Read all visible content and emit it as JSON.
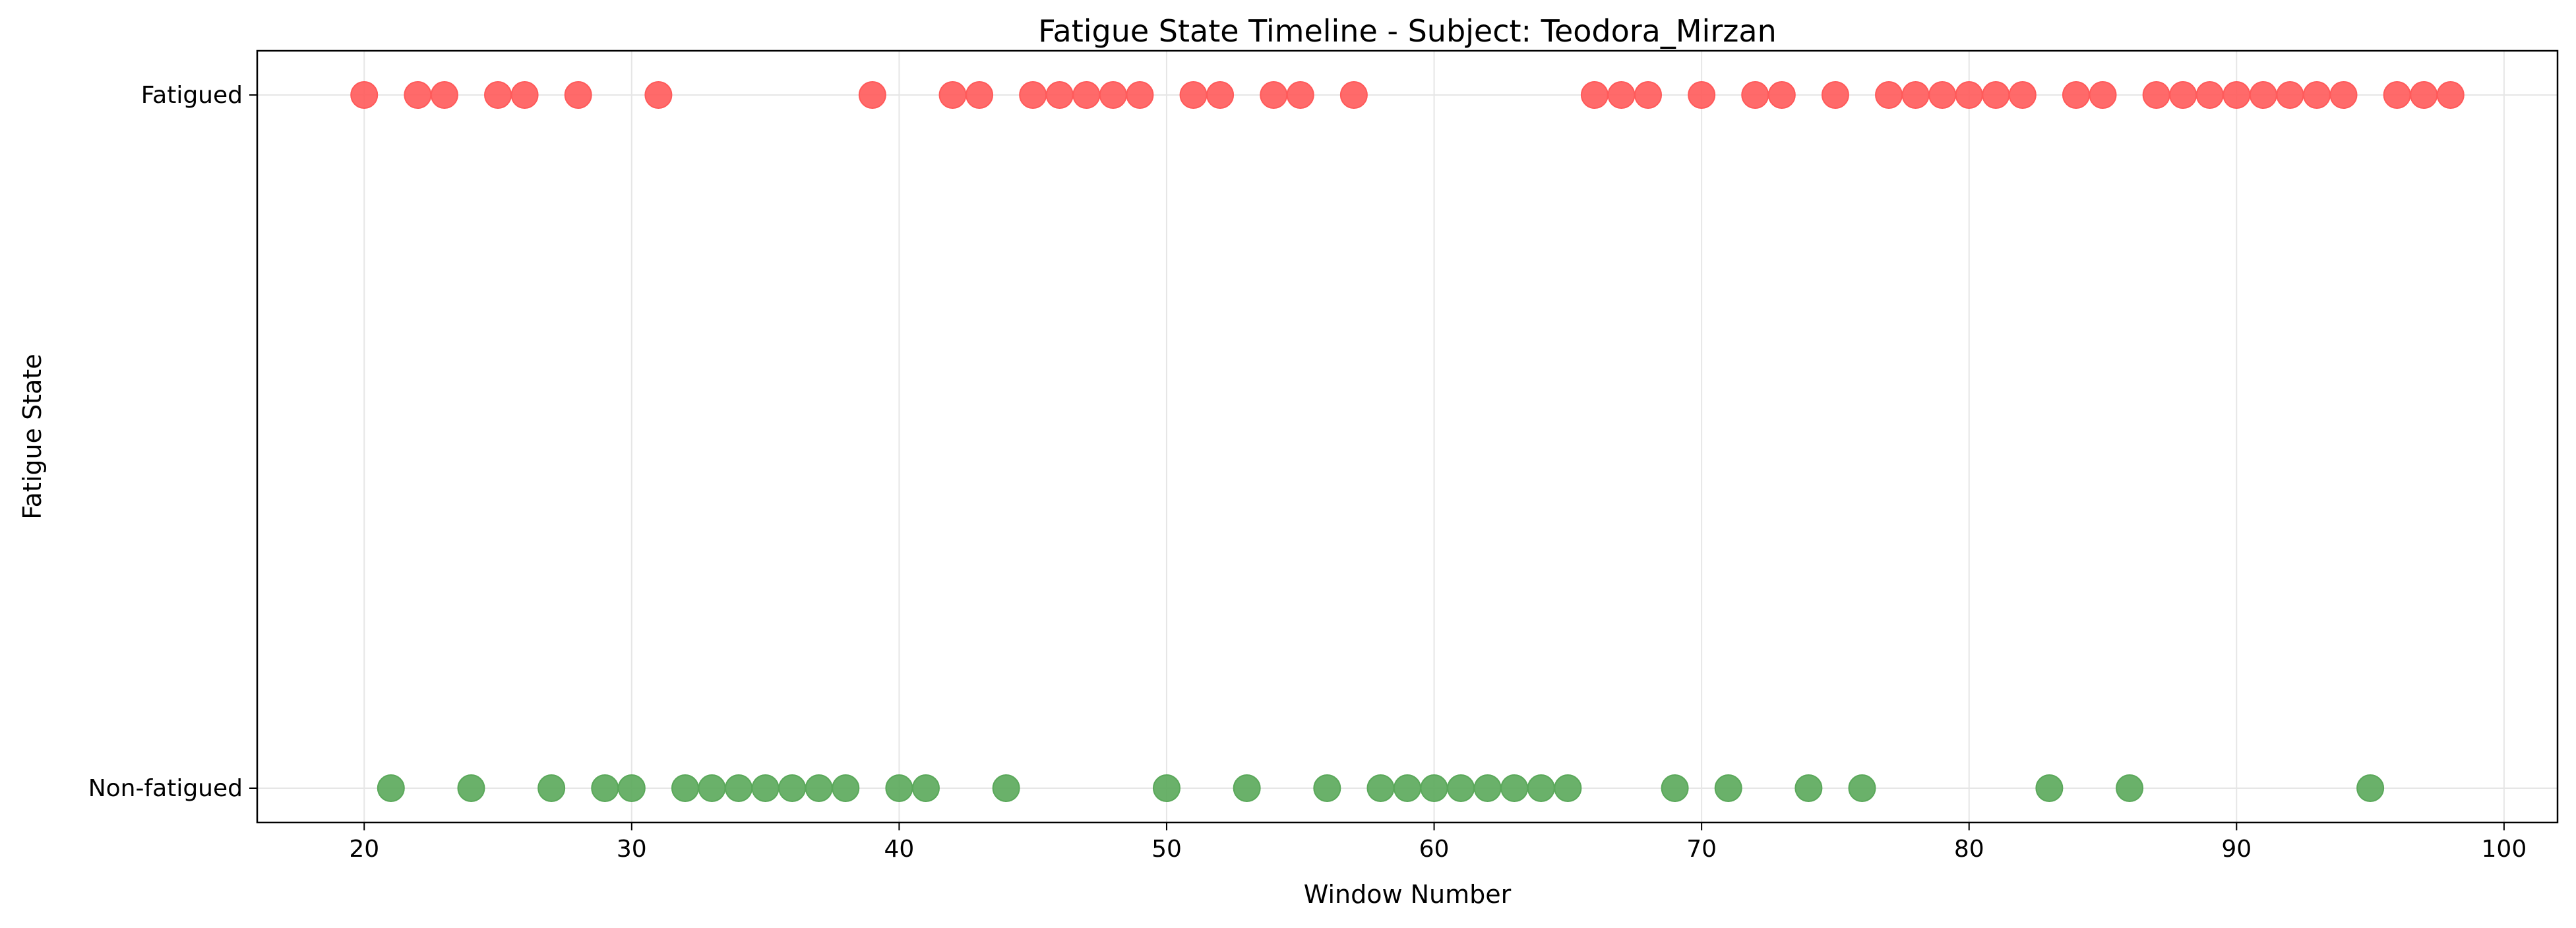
{
  "chart_data": {
    "type": "scatter",
    "title": "Fatigue State Timeline - Subject: Teodora_Mirzan",
    "xlabel": "Window Number",
    "ylabel": "Fatigue State",
    "xlim": [
      16,
      102
    ],
    "xticks": [
      20,
      30,
      40,
      50,
      60,
      70,
      80,
      90,
      100
    ],
    "yticks": [
      {
        "value": 0,
        "label": "Non-fatigued"
      },
      {
        "value": 1,
        "label": "Fatigued"
      }
    ],
    "grid": true,
    "series": [
      {
        "state": 1,
        "color": "#ff5a5a",
        "x": [
          20,
          22,
          23,
          25,
          26,
          28,
          31,
          39,
          42,
          43,
          45,
          46,
          47,
          48,
          49,
          51,
          52,
          54,
          55,
          57,
          66,
          67,
          68,
          70,
          72,
          73,
          75,
          77,
          78,
          79,
          80,
          81,
          82,
          84,
          85,
          87,
          88,
          89,
          90,
          91,
          92,
          93,
          94,
          96,
          97,
          98
        ]
      },
      {
        "state": 0,
        "color": "#5aa85a",
        "x": [
          21,
          24,
          27,
          29,
          30,
          32,
          33,
          34,
          35,
          36,
          37,
          38,
          40,
          41,
          44,
          50,
          53,
          56,
          58,
          59,
          60,
          61,
          62,
          63,
          64,
          65,
          69,
          71,
          74,
          76,
          83,
          86,
          95
        ]
      }
    ]
  }
}
